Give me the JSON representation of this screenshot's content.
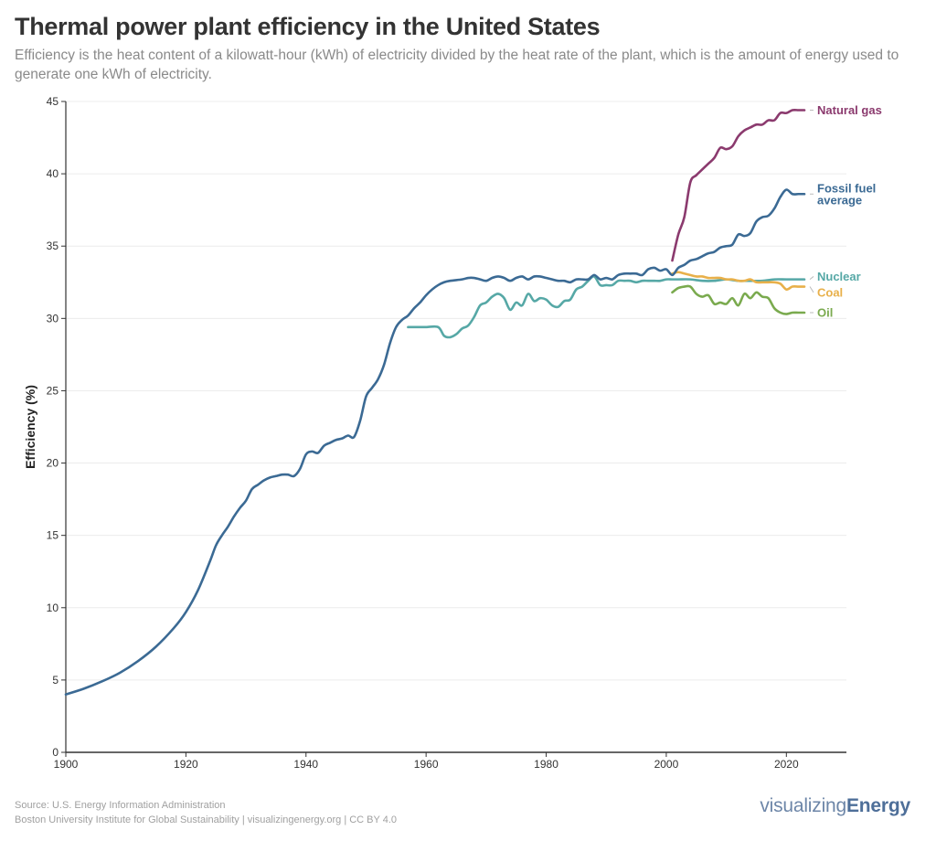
{
  "header": {
    "title": "Thermal power plant efficiency in the United States",
    "subtitle": "Efficiency is the heat content of a kilowatt-hour (kWh) of electricity divided by the heat rate of the plant, which is the amount of energy used to generate one kWh of electricity."
  },
  "footer": {
    "source": "Source: U.S. Energy Information Administration",
    "credit": "Boston University Institute for Global Sustainability | visualizingenergy.org | CC BY 4.0",
    "brand_light": "visualizing",
    "brand_bold": "Energy"
  },
  "chart_data": {
    "type": "line",
    "title": "Thermal power plant efficiency in the United States",
    "xlabel": "",
    "ylabel": "Efficiency (%)",
    "xlim": [
      1900,
      2030
    ],
    "ylim": [
      0,
      45
    ],
    "xticks": [
      1900,
      1920,
      1940,
      1960,
      1980,
      2000,
      2020
    ],
    "yticks": [
      0,
      5,
      10,
      15,
      20,
      25,
      30,
      35,
      40,
      45
    ],
    "grid": "horizontal",
    "legend": "direct-labels-right",
    "series": [
      {
        "name": "Fossil fuel average",
        "label_lines": [
          "Fossil fuel",
          "average"
        ],
        "color": "#3b6a94",
        "x": [
          1900,
          1903,
          1906,
          1909,
          1912,
          1915,
          1918,
          1920,
          1922,
          1924,
          1925,
          1926,
          1927,
          1928,
          1929,
          1930,
          1931,
          1932,
          1933,
          1934,
          1935,
          1936,
          1937,
          1938,
          1939,
          1940,
          1941,
          1942,
          1943,
          1944,
          1945,
          1946,
          1947,
          1948,
          1949,
          1950,
          1951,
          1952,
          1953,
          1954,
          1955,
          1956,
          1957,
          1958,
          1959,
          1960,
          1961,
          1962,
          1963,
          1964,
          1966,
          1967,
          1968,
          1969,
          1970,
          1971,
          1972,
          1973,
          1974,
          1975,
          1976,
          1977,
          1978,
          1979,
          1980,
          1981,
          1982,
          1983,
          1984,
          1985,
          1986,
          1987,
          1988,
          1989,
          1990,
          1991,
          1992,
          1993,
          1994,
          1995,
          1996,
          1997,
          1998,
          1999,
          2000,
          2001,
          2002,
          2003,
          2004,
          2005,
          2006,
          2007,
          2008,
          2009,
          2010,
          2011,
          2012,
          2013,
          2014,
          2015,
          2016,
          2017,
          2018,
          2019,
          2020,
          2021,
          2022,
          2023
        ],
        "values": [
          4.0,
          4.4,
          4.9,
          5.5,
          6.3,
          7.3,
          8.6,
          9.7,
          11.2,
          13.2,
          14.3,
          15.0,
          15.6,
          16.3,
          16.9,
          17.4,
          18.2,
          18.5,
          18.8,
          19.0,
          19.1,
          19.2,
          19.2,
          19.1,
          19.6,
          20.6,
          20.8,
          20.7,
          21.2,
          21.4,
          21.6,
          21.7,
          21.9,
          21.8,
          22.9,
          24.6,
          25.2,
          25.8,
          26.8,
          28.3,
          29.4,
          29.9,
          30.2,
          30.7,
          31.1,
          31.6,
          32.0,
          32.3,
          32.5,
          32.6,
          32.7,
          32.8,
          32.8,
          32.7,
          32.6,
          32.8,
          32.9,
          32.8,
          32.6,
          32.8,
          32.9,
          32.7,
          32.9,
          32.9,
          32.8,
          32.7,
          32.6,
          32.6,
          32.5,
          32.7,
          32.7,
          32.7,
          33.0,
          32.7,
          32.8,
          32.7,
          33.0,
          33.1,
          33.1,
          33.1,
          33.0,
          33.4,
          33.5,
          33.3,
          33.4,
          33.0,
          33.5,
          33.7,
          34.0,
          34.1,
          34.3,
          34.5,
          34.6,
          34.9,
          35.0,
          35.1,
          35.8,
          35.7,
          35.9,
          36.7,
          37.0,
          37.1,
          37.6,
          38.4,
          38.9,
          38.6,
          38.6,
          38.6
        ]
      },
      {
        "name": "Natural gas",
        "label_lines": [
          "Natural gas"
        ],
        "color": "#8b3a6e",
        "x": [
          2001,
          2002,
          2003,
          2004,
          2005,
          2006,
          2007,
          2008,
          2009,
          2010,
          2011,
          2012,
          2013,
          2014,
          2015,
          2016,
          2017,
          2018,
          2019,
          2020,
          2021,
          2022,
          2023
        ],
        "values": [
          34.0,
          35.8,
          37.0,
          39.4,
          39.9,
          40.3,
          40.7,
          41.1,
          41.8,
          41.7,
          41.9,
          42.6,
          43.0,
          43.2,
          43.4,
          43.4,
          43.7,
          43.7,
          44.2,
          44.2,
          44.4,
          44.4,
          44.4
        ]
      },
      {
        "name": "Nuclear",
        "label_lines": [
          "Nuclear"
        ],
        "color": "#56a8a6",
        "x": [
          1957,
          1958,
          1960,
          1962,
          1963,
          1964,
          1965,
          1966,
          1967,
          1968,
          1969,
          1970,
          1971,
          1972,
          1973,
          1974,
          1975,
          1976,
          1977,
          1978,
          1979,
          1980,
          1981,
          1982,
          1983,
          1984,
          1985,
          1986,
          1987,
          1988,
          1989,
          1990,
          1991,
          1992,
          1993,
          1994,
          1995,
          1996,
          1997,
          1998,
          1999,
          2000,
          2001,
          2002,
          2004,
          2006,
          2008,
          2010,
          2012,
          2014,
          2016,
          2018,
          2020,
          2022,
          2023
        ],
        "values": [
          29.4,
          29.4,
          29.4,
          29.4,
          28.8,
          28.7,
          28.9,
          29.3,
          29.5,
          30.1,
          30.9,
          31.1,
          31.5,
          31.7,
          31.4,
          30.6,
          31.1,
          30.9,
          31.7,
          31.2,
          31.4,
          31.3,
          30.9,
          30.8,
          31.2,
          31.3,
          32.0,
          32.2,
          32.6,
          32.9,
          32.3,
          32.3,
          32.3,
          32.6,
          32.6,
          32.6,
          32.5,
          32.6,
          32.6,
          32.6,
          32.6,
          32.7,
          32.7,
          32.7,
          32.7,
          32.6,
          32.6,
          32.7,
          32.6,
          32.6,
          32.6,
          32.7,
          32.7,
          32.7,
          32.7
        ]
      },
      {
        "name": "Coal",
        "label_lines": [
          "Coal"
        ],
        "color": "#e8b04a",
        "x": [
          2001,
          2002,
          2003,
          2004,
          2005,
          2006,
          2007,
          2008,
          2009,
          2010,
          2011,
          2012,
          2013,
          2014,
          2015,
          2016,
          2017,
          2018,
          2019,
          2020,
          2021,
          2022,
          2023
        ],
        "values": [
          33.1,
          33.2,
          33.1,
          33.0,
          32.9,
          32.9,
          32.8,
          32.8,
          32.8,
          32.7,
          32.7,
          32.6,
          32.6,
          32.7,
          32.5,
          32.5,
          32.5,
          32.5,
          32.4,
          32.0,
          32.2,
          32.2,
          32.2
        ]
      },
      {
        "name": "Oil",
        "label_lines": [
          "Oil"
        ],
        "color": "#7aaa4e",
        "x": [
          2001,
          2002,
          2003,
          2004,
          2005,
          2006,
          2007,
          2008,
          2009,
          2010,
          2011,
          2012,
          2013,
          2014,
          2015,
          2016,
          2017,
          2018,
          2019,
          2020,
          2021,
          2022,
          2023
        ],
        "values": [
          31.8,
          32.1,
          32.2,
          32.2,
          31.7,
          31.5,
          31.6,
          31.0,
          31.1,
          31.0,
          31.4,
          30.9,
          31.7,
          31.4,
          31.8,
          31.5,
          31.4,
          30.7,
          30.4,
          30.3,
          30.4,
          30.4,
          30.4
        ]
      }
    ]
  }
}
